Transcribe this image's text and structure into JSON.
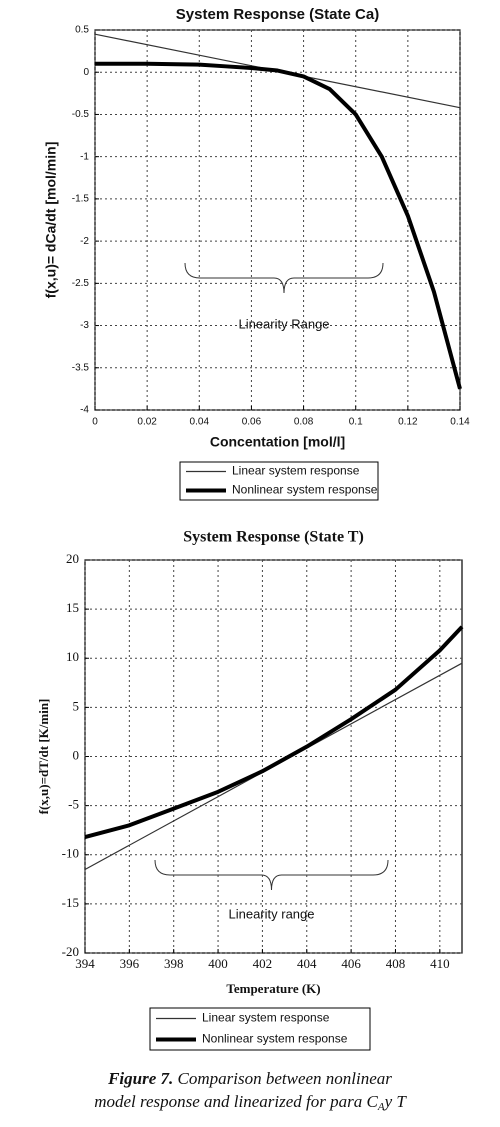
{
  "chart_data": [
    {
      "type": "line",
      "title": "System Response (State Ca)",
      "xlabel": "Concentation [mol/l]",
      "ylabel": "f(x,u)= dCa/dt [mol/min]",
      "xlim": [
        0,
        0.14
      ],
      "xticks": [
        0,
        0.02,
        0.04,
        0.06,
        0.08,
        0.1,
        0.12,
        0.14
      ],
      "ylim": [
        -4,
        0.5
      ],
      "yticks": [
        0.5,
        0,
        -0.5,
        -1,
        -1.5,
        -2,
        -2.5,
        -3,
        -3.5,
        -4
      ],
      "grid": true,
      "annotation": "Linearity Range",
      "series": [
        {
          "name": "Linear system response",
          "color": "#333333",
          "linewidth": 1.2,
          "x": [
            0,
            0.14
          ],
          "values": [
            0.45,
            -0.42
          ]
        },
        {
          "name": "Nonlinear system response",
          "color": "#000000",
          "linewidth": 4,
          "x": [
            0,
            0.02,
            0.04,
            0.05,
            0.06,
            0.07,
            0.08,
            0.09,
            0.1,
            0.11,
            0.12,
            0.13,
            0.14
          ],
          "values": [
            0.1,
            0.1,
            0.09,
            0.07,
            0.05,
            0.02,
            -0.05,
            -0.2,
            -0.5,
            -1.0,
            -1.7,
            -2.6,
            -3.75
          ]
        }
      ]
    },
    {
      "type": "line",
      "title": "System Response (State T)",
      "xlabel": "Temperature (K)",
      "ylabel": "f(x,u)=dT/dt [K/min]",
      "xlim": [
        394,
        411
      ],
      "xticks": [
        394,
        396,
        398,
        400,
        402,
        404,
        406,
        408,
        410
      ],
      "ylim": [
        -20,
        20
      ],
      "yticks": [
        20,
        15,
        10,
        5,
        0,
        -5,
        -10,
        -15,
        -20
      ],
      "grid": true,
      "annotation": "Linearity range",
      "series": [
        {
          "name": "Linear system response",
          "color": "#333333",
          "linewidth": 1.2,
          "x": [
            394,
            411
          ],
          "values": [
            -11.5,
            9.5
          ]
        },
        {
          "name": "Nonlinear system response",
          "color": "#000000",
          "linewidth": 4,
          "x": [
            394,
            396,
            398,
            400,
            402,
            404,
            406,
            408,
            410,
            411
          ],
          "values": [
            -8.2,
            -7,
            -5.3,
            -3.6,
            -1.5,
            1,
            3.8,
            6.8,
            10.8,
            13.2
          ]
        }
      ]
    }
  ],
  "caption": {
    "label": "Figure 7.",
    "line1": "Comparison between nonlinear",
    "line2": "model response and linearized for para C",
    "subscript": "A",
    "line2_end": "y T"
  }
}
